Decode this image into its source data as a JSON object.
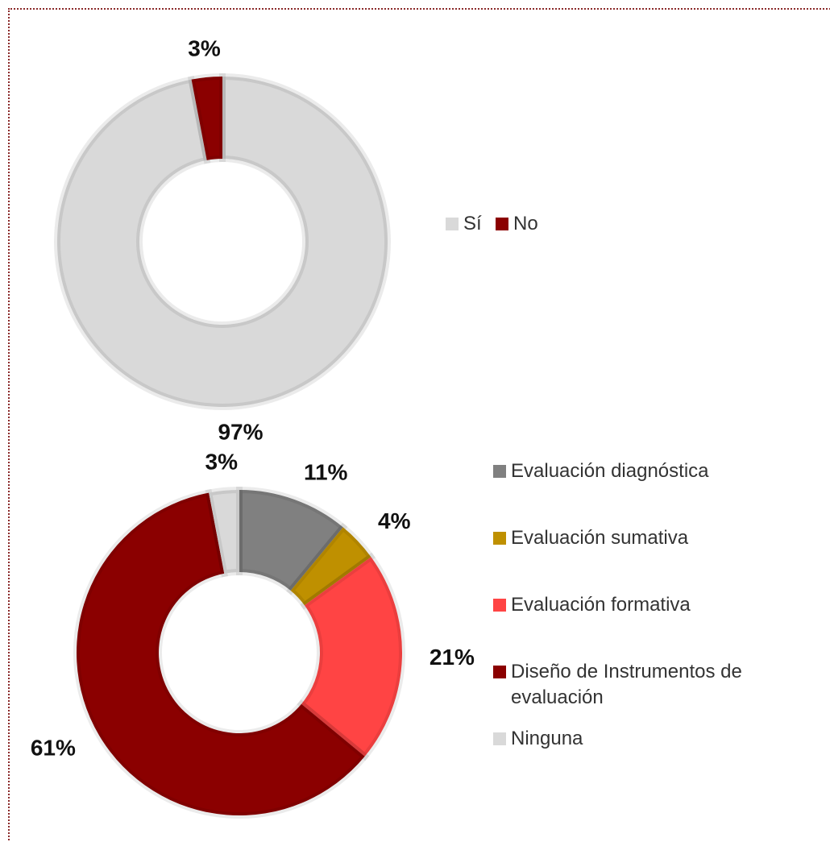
{
  "chart_data": [
    {
      "type": "donut",
      "categories": [
        "Sí",
        "No"
      ],
      "values": [
        97,
        3
      ],
      "value_labels": [
        "97%",
        "3%"
      ],
      "colors": [
        "#d9d9d9",
        "#8b0000"
      ],
      "legend": "right"
    },
    {
      "type": "donut",
      "categories": [
        "Evaluación diagnóstica",
        "Evaluación sumativa",
        "Evaluación formativa",
        "Diseño de Instrumentos de evaluación",
        "Ninguna"
      ],
      "values": [
        11,
        4,
        21,
        61,
        3
      ],
      "value_labels": [
        "11%",
        "4%",
        "21%",
        "61%",
        "3%"
      ],
      "colors": [
        "#808080",
        "#bf9000",
        "#ff4444",
        "#8b0000",
        "#d9d9d9"
      ],
      "legend": "right"
    }
  ]
}
